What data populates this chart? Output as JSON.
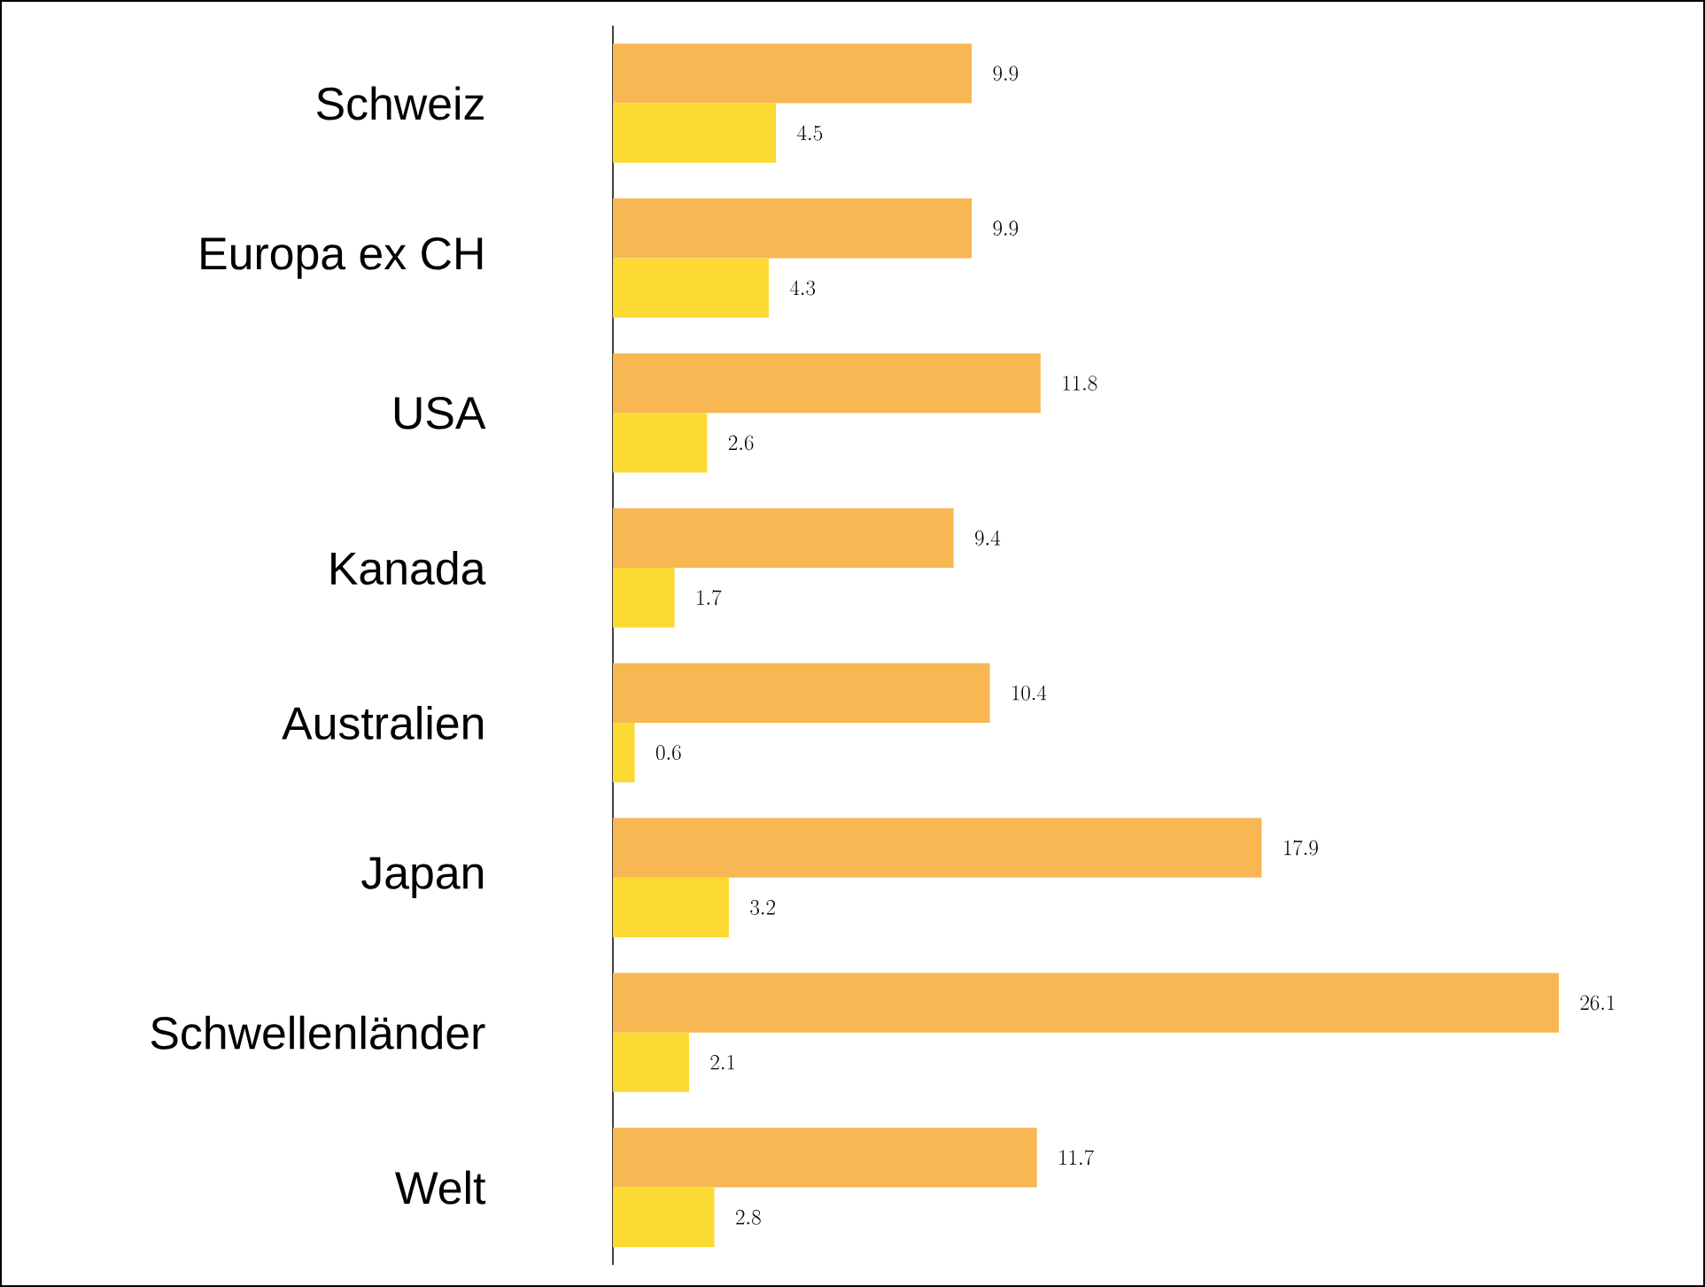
{
  "chart_data": {
    "type": "bar",
    "orientation": "horizontal",
    "data_labels": true,
    "categories": [
      "Schweiz",
      "Europa ex CH",
      "USA",
      "Kanada",
      "Australien",
      "Japan",
      "Schwellenländer",
      "Welt"
    ],
    "series": [
      {
        "color": "#f8b752",
        "values": [
          9.9,
          9.9,
          11.8,
          9.4,
          10.4,
          17.9,
          26.1,
          11.7
        ]
      },
      {
        "color": "#fdda33",
        "values": [
          4.5,
          4.3,
          2.6,
          1.7,
          0.6,
          3.2,
          2.1,
          2.8
        ]
      }
    ]
  }
}
